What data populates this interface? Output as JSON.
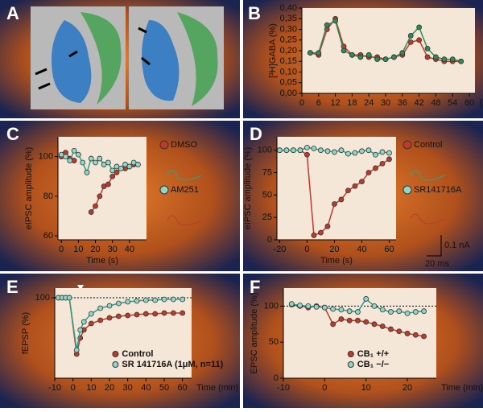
{
  "chart_data": [
    {
      "type": "image",
      "label": "A"
    },
    {
      "type": "line",
      "label": "B",
      "ylabel": "[³H]GABA (%)",
      "xlabel": "(min)",
      "xlim": [
        0,
        62
      ],
      "xticks": [
        0,
        6,
        12,
        18,
        24,
        30,
        36,
        42,
        48,
        54,
        60
      ],
      "ylim": [
        0,
        0.4
      ],
      "yticks": [
        {
          "value": 0,
          "label": "0,00"
        },
        {
          "value": 0.05,
          "label": "0,05"
        },
        {
          "value": 0.1,
          "label": "0,10"
        },
        {
          "value": 0.15,
          "label": "0,15"
        },
        {
          "value": 0.2,
          "label": "0,20"
        },
        {
          "value": 0.25,
          "label": "0,25"
        },
        {
          "value": 0.3,
          "label": "0,30"
        },
        {
          "value": 0.35,
          "label": "0,35"
        },
        {
          "value": 0.4,
          "label": "0,40"
        }
      ],
      "x": [
        3,
        6,
        9,
        12,
        15,
        18,
        21,
        24,
        27,
        30,
        33,
        36,
        39,
        42,
        45,
        48,
        51,
        54,
        57
      ],
      "series": [
        {
          "color": "#c0392b",
          "values": [
            0.19,
            0.18,
            0.3,
            0.35,
            0.22,
            0.18,
            0.18,
            0.17,
            0.17,
            0.16,
            0.17,
            0.18,
            0.24,
            0.25,
            0.17,
            0.16,
            0.15,
            0.15,
            0.15
          ]
        },
        {
          "color": "#2e8b57",
          "values": [
            0.19,
            0.19,
            0.32,
            0.34,
            0.2,
            0.18,
            0.17,
            0.18,
            0.16,
            0.16,
            0.17,
            0.19,
            0.27,
            0.31,
            0.21,
            0.17,
            0.16,
            0.16,
            0.15
          ]
        }
      ]
    },
    {
      "type": "line",
      "label": "C",
      "ylabel": "eIPSC amplitude (%)",
      "xlabel": "Time (s)",
      "xlim": [
        -2,
        50
      ],
      "xticks": [
        0,
        10,
        20,
        30,
        40
      ],
      "ylim": [
        58,
        110
      ],
      "yticks": [
        60,
        80,
        100
      ],
      "legend": "right",
      "x": [
        0,
        2.5,
        5,
        7.5,
        10,
        12.5,
        15,
        17.5,
        20,
        22.5,
        25,
        27.5,
        30,
        32.5,
        35,
        37.5,
        40,
        42.5,
        45
      ],
      "series": [
        {
          "name": "DMSO",
          "color": "#c0392b",
          "values": [
            100,
            102,
            99,
            98,
            null,
            null,
            null,
            72,
            75,
            80,
            85,
            86,
            90,
            92,
            94,
            94,
            95,
            96,
            null
          ]
        },
        {
          "name": "AM251",
          "color": "#8fd8c8",
          "values": [
            101,
            100,
            98,
            103,
            101,
            97,
            92,
            99,
            97,
            99,
            96,
            97,
            93,
            95,
            94,
            96,
            95,
            97,
            96
          ]
        }
      ]
    },
    {
      "type": "line",
      "label": "D",
      "ylabel": "eIPSC amplitude (%)",
      "xlabel": "Time (s)",
      "xlim": [
        -22,
        65
      ],
      "xticks": [
        -20,
        0,
        20,
        40,
        60
      ],
      "ylim": [
        0,
        115
      ],
      "yticks": [
        0,
        25,
        50,
        75,
        100
      ],
      "legend": "right",
      "scale_bar_labels": [
        "0.1 nA",
        "20 ms"
      ],
      "x": [
        -20,
        -15,
        -10,
        -5,
        0,
        5,
        10,
        15,
        20,
        25,
        30,
        35,
        40,
        45,
        50,
        55,
        60
      ],
      "series": [
        {
          "name": "Control",
          "color": "#c0392b",
          "values": [
            100,
            100,
            100,
            100,
            95,
            5,
            8,
            15,
            40,
            45,
            55,
            60,
            65,
            75,
            80,
            85,
            90
          ]
        },
        {
          "name": "SR141716A",
          "color": "#8fd8c8",
          "values": [
            100,
            100,
            100,
            100,
            103,
            102,
            100,
            99,
            98,
            100,
            96,
            97,
            99,
            100,
            95,
            98,
            97
          ]
        }
      ]
    },
    {
      "type": "line",
      "label": "E",
      "ylabel": "fEPSP (%)",
      "xlabel": "Time (min)",
      "xlim": [
        -10,
        65
      ],
      "xticks": [
        -10,
        0,
        10,
        20,
        30,
        40,
        50,
        60
      ],
      "ylim": [
        0,
        112
      ],
      "yticks": [
        100
      ],
      "legend": "lower right",
      "reference_line": 100,
      "x": [
        -8,
        -6,
        -4,
        -2,
        2,
        4,
        6,
        10,
        15,
        20,
        25,
        30,
        35,
        40,
        45,
        50,
        55,
        60
      ],
      "series": [
        {
          "name": "Control",
          "color": "#c0392b",
          "values": [
            100,
            100,
            100,
            100,
            30,
            50,
            60,
            68,
            72,
            75,
            77,
            78,
            79,
            80,
            80,
            81,
            81,
            81
          ]
        },
        {
          "name": "SR 141716A (1μM, n=11)",
          "color": "#8fd8c8",
          "values": [
            100,
            100,
            100,
            100,
            35,
            60,
            70,
            80,
            87,
            90,
            93,
            95,
            96,
            97,
            97,
            98,
            98,
            98
          ]
        }
      ]
    },
    {
      "type": "line",
      "label": "F",
      "ylabel": "EPSC amplitude (%)",
      "xlabel": "Time (min)",
      "xlim": [
        -10,
        27
      ],
      "xticks": [
        -10,
        0,
        10,
        20
      ],
      "ylim": [
        0,
        125
      ],
      "yticks": [
        0,
        50,
        100
      ],
      "legend": "lower right",
      "reference_line": 100,
      "x": [
        -8,
        -6,
        -4,
        -2,
        0,
        2,
        4,
        6,
        8,
        10,
        12,
        14,
        16,
        18,
        20,
        22,
        24
      ],
      "series": [
        {
          "name": "CB₁ +/+",
          "color": "#c0392b",
          "values": [
            102,
            100,
            98,
            100,
            98,
            75,
            82,
            80,
            80,
            78,
            75,
            72,
            68,
            65,
            62,
            60,
            58
          ]
        },
        {
          "name": "CB₁ −/−",
          "color": "#8fd8c8",
          "values": [
            103,
            101,
            100,
            99,
            98,
            96,
            95,
            93,
            92,
            110,
            100,
            95,
            92,
            93,
            90,
            92,
            93
          ]
        }
      ]
    }
  ]
}
